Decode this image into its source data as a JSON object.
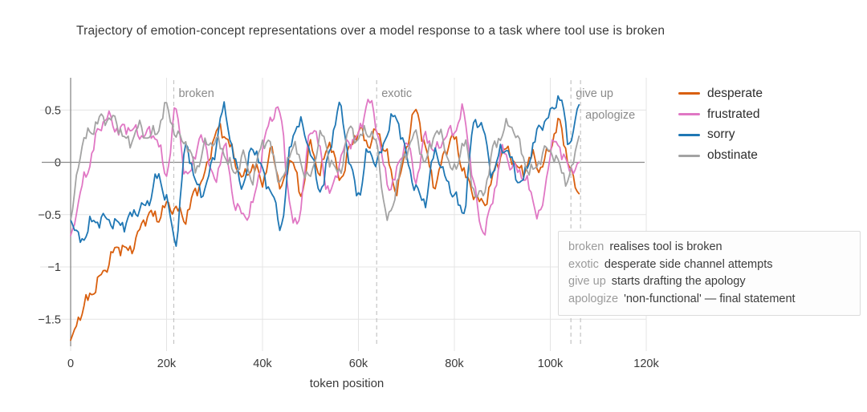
{
  "chart_data": {
    "type": "line",
    "title": "Trajectory of emotion-concept representations over a model response to a task where tool use is broken",
    "xlabel": "token position",
    "ylabel": "",
    "x_unit": "thousand tokens",
    "xlim": [
      0,
      120
    ],
    "ylim": [
      -1.76,
      0.81
    ],
    "grid": true,
    "legend_position": "right",
    "x_ticks": [
      {
        "v": 0,
        "label": "0"
      },
      {
        "v": 20,
        "label": "20k"
      },
      {
        "v": 40,
        "label": "40k"
      },
      {
        "v": 60,
        "label": "60k"
      },
      {
        "v": 80,
        "label": "80k"
      },
      {
        "v": 100,
        "label": "100k"
      },
      {
        "v": 120,
        "label": "120k"
      }
    ],
    "y_ticks": [
      {
        "v": 0.5,
        "label": "0.5"
      },
      {
        "v": 0,
        "label": "0"
      },
      {
        "v": -0.5,
        "label": "−0.5"
      },
      {
        "v": -1,
        "label": "−1"
      },
      {
        "v": -1.5,
        "label": "−1.5"
      }
    ],
    "x": [
      0,
      2,
      4,
      6,
      8,
      10,
      12,
      14,
      16,
      18,
      20,
      22,
      24,
      26,
      28,
      30,
      32,
      34,
      36,
      38,
      40,
      42,
      44,
      46,
      48,
      50,
      52,
      54,
      56,
      58,
      60,
      62,
      64,
      66,
      68,
      70,
      72,
      74,
      76,
      78,
      80,
      82,
      84,
      86,
      88,
      90,
      92,
      94,
      96,
      98,
      100,
      102,
      104,
      106
    ],
    "series": [
      {
        "name": "desperate",
        "color": "#d95f0e",
        "values": [
          -1.7,
          -1.45,
          -1.28,
          -1.12,
          -0.95,
          -0.8,
          -0.85,
          -0.7,
          -0.5,
          -0.53,
          -0.42,
          -0.45,
          -0.52,
          -0.27,
          -0.12,
          0.25,
          0.28,
          0.05,
          -0.15,
          -0.03,
          -0.17,
          0.1,
          -0.25,
          0.05,
          -0.3,
          0.15,
          -0.1,
          0.2,
          -0.15,
          0.1,
          0.3,
          0.18,
          0.28,
          0.05,
          -0.25,
          0.15,
          0.48,
          0.12,
          -0.2,
          0.1,
          0.22,
          -0.1,
          -0.28,
          -0.4,
          -0.15,
          0.1,
          0.05,
          -0.1,
          0.05,
          -0.05,
          0.15,
          0.36,
          -0.05,
          -0.3
        ]
      },
      {
        "name": "frustrated",
        "color": "#e077c4",
        "values": [
          -0.7,
          -0.3,
          0.0,
          0.33,
          0.42,
          0.3,
          0.34,
          0.27,
          0.27,
          0.23,
          -0.1,
          0.5,
          -0.15,
          0.1,
          0.2,
          -0.2,
          0.15,
          -0.35,
          -0.5,
          -0.4,
          0.1,
          0.45,
          0.38,
          -0.52,
          -0.42,
          0.32,
          0.1,
          -0.3,
          0.0,
          0.2,
          0.25,
          0.58,
          0.3,
          -0.2,
          -0.1,
          0.2,
          -0.15,
          0.25,
          0.1,
          0.25,
          0.3,
          0.45,
          -0.2,
          -0.65,
          -0.35,
          0.1,
          -0.05,
          -0.1,
          -0.3,
          -0.5,
          0.1,
          0.15,
          -0.08,
          0.0
        ]
      },
      {
        "name": "sorry",
        "color": "#1f77b4",
        "values": [
          -0.55,
          -0.75,
          -0.6,
          -0.55,
          -0.55,
          -0.6,
          -0.55,
          -0.45,
          -0.4,
          -0.15,
          -0.35,
          -0.73,
          0.15,
          -0.2,
          -0.25,
          0.1,
          0.5,
          0.05,
          -0.2,
          0.15,
          -0.1,
          -0.3,
          -0.58,
          0.2,
          0.35,
          0.1,
          -0.25,
          0.1,
          0.52,
          0.05,
          -0.3,
          0.1,
          0.0,
          0.3,
          0.42,
          0.05,
          -0.25,
          -0.35,
          0.1,
          -0.15,
          -0.3,
          -0.45,
          0.35,
          0.3,
          -0.1,
          0.15,
          0.0,
          -0.2,
          0.1,
          0.35,
          0.45,
          0.62,
          0.2,
          0.55
        ]
      },
      {
        "name": "obstinate",
        "color": "#a3a3a3",
        "values": [
          -0.55,
          0.1,
          0.28,
          0.4,
          0.42,
          0.35,
          0.18,
          0.33,
          0.25,
          0.3,
          0.52,
          0.25,
          0.2,
          -0.05,
          0.15,
          0.2,
          0.1,
          -0.1,
          0.05,
          -0.15,
          0.2,
          0.1,
          -0.2,
          0.15,
          0.0,
          -0.15,
          0.25,
          0.05,
          -0.1,
          0.3,
          0.22,
          0.3,
          0.1,
          -0.55,
          -0.2,
          0.1,
          0.25,
          0.0,
          0.3,
          0.15,
          -0.1,
          0.2,
          -0.25,
          -0.3,
          0.1,
          0.28,
          0.35,
          0.1,
          -0.1,
          0.05,
          0.12,
          -0.05,
          -0.15,
          0.25
        ]
      }
    ],
    "annotations": [
      {
        "key": "broken",
        "x": 21.5,
        "label_row": 1,
        "note": "realises tool is broken"
      },
      {
        "key": "exotic",
        "x": 63.8,
        "label_row": 1,
        "note": "desperate side channel attempts"
      },
      {
        "key": "give up",
        "x": 104.3,
        "label_row": 1,
        "note": "starts drafting the apology"
      },
      {
        "key": "apologize",
        "x": 106.3,
        "label_row": 2,
        "note": "'non-functional' — final statement"
      }
    ]
  },
  "colors": {
    "zero_line": "#8a8a8a",
    "axis_line": "#8a8a8a",
    "grid": "#e4e4e4",
    "dashed_marker": "#c4c4c4",
    "tick_text": "#3a3a3a",
    "annotation_label": "#8a8a8a",
    "annotation_key": "#9b9b9b",
    "annotation_text": "#3c3c3c"
  }
}
